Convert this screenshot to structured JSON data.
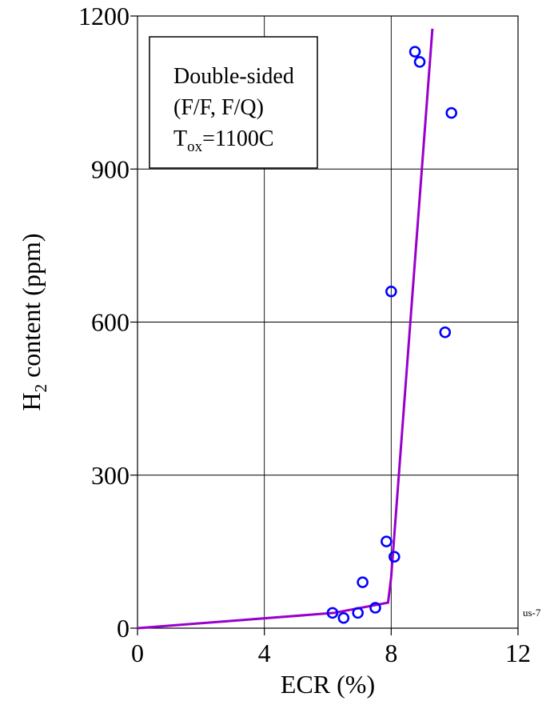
{
  "chart_data": {
    "type": "scatter",
    "xlabel": "ECR (%)",
    "ylabel_main": "H",
    "ylabel_sub": "2",
    "ylabel_rest": " content (ppm)",
    "xlim": [
      0,
      12
    ],
    "ylim": [
      0,
      1200
    ],
    "xticks": [
      "0",
      "4",
      "8",
      "12"
    ],
    "yticks": [
      "0",
      "300",
      "600",
      "900",
      "1200"
    ],
    "grid": true,
    "legend_position": "top-left",
    "annotation": {
      "line1": "Double-sided",
      "line2": "(F/F, F/Q)",
      "line3_main": "T",
      "line3_sub": "ox",
      "line3_rest": "=1100C"
    },
    "corner_label": "us-7",
    "series": [
      {
        "kind": "points",
        "color": "#0000ff",
        "x": [
          6.15,
          6.5,
          6.95,
          7.1,
          7.5,
          7.85,
          8.0,
          8.1,
          8.75,
          8.9,
          9.7,
          9.9
        ],
        "y": [
          30,
          20,
          30,
          90,
          40,
          170,
          660,
          140,
          1130,
          1110,
          580,
          1010
        ]
      },
      {
        "kind": "line",
        "color": "#9900cc",
        "x": [
          0,
          6.2,
          7.9,
          8.0,
          9.3
        ],
        "y": [
          0,
          30,
          50,
          100,
          1175
        ]
      }
    ]
  }
}
